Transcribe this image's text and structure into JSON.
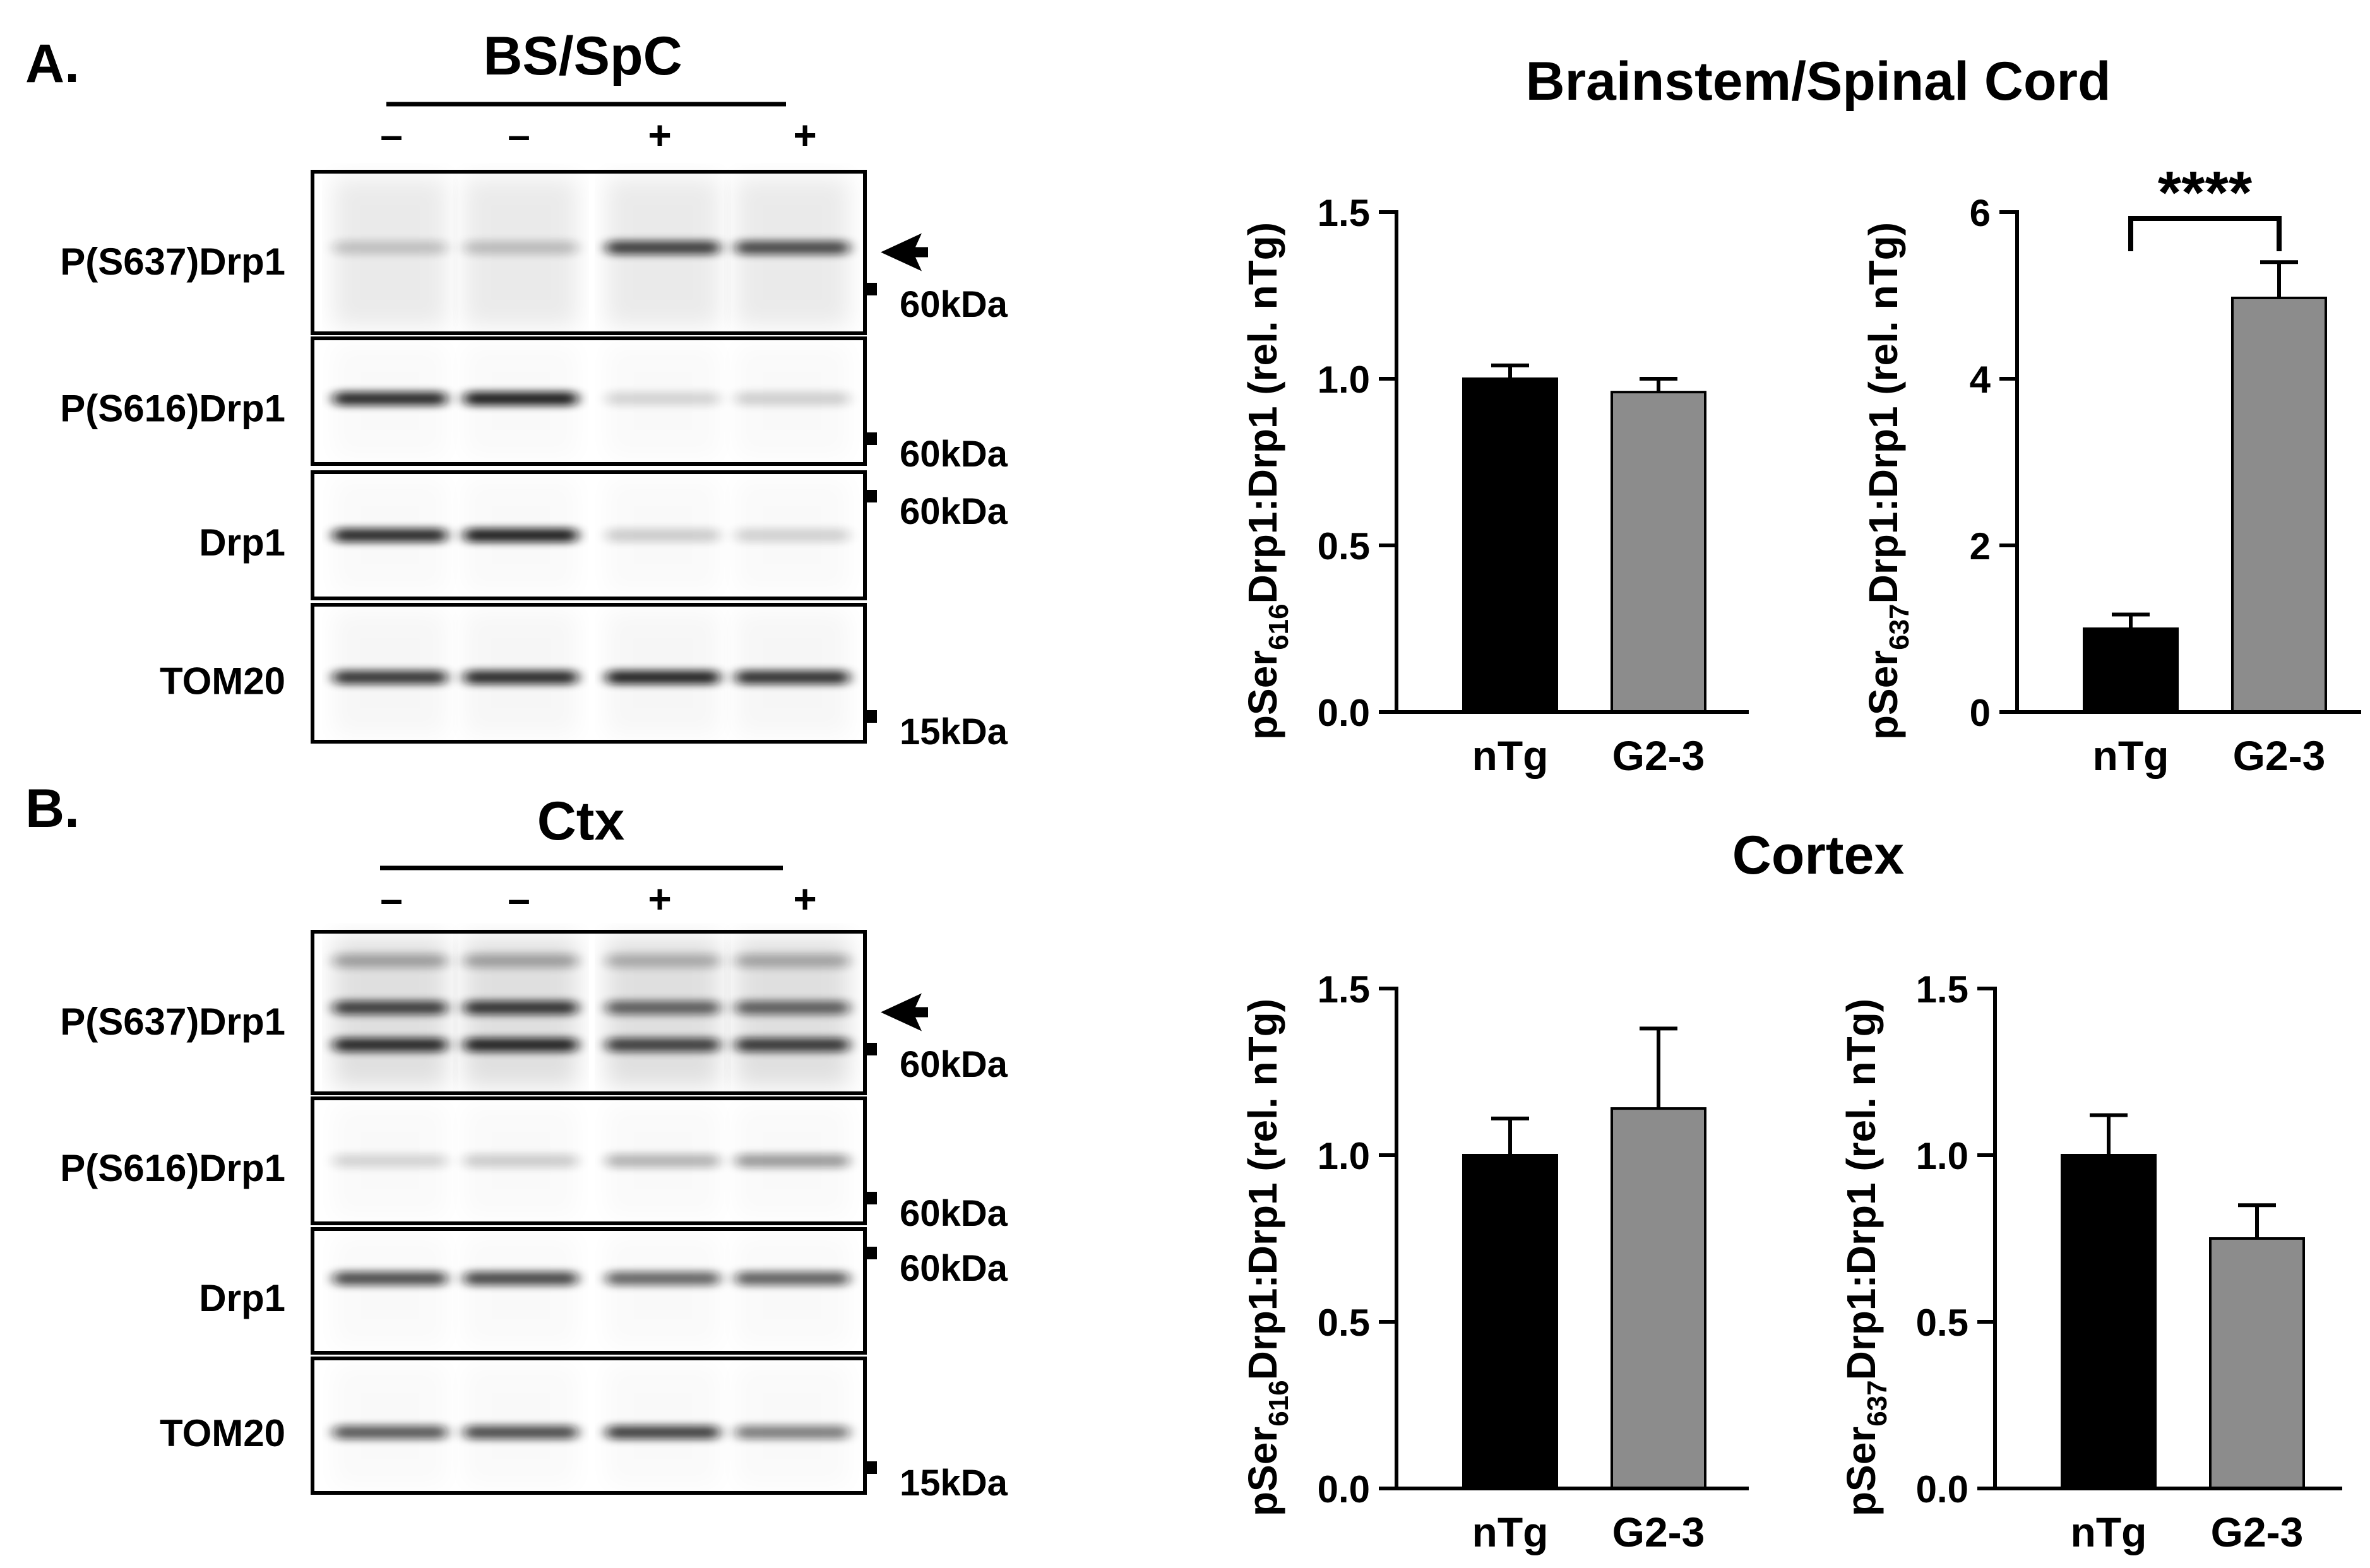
{
  "panel_a": {
    "letter": "A.",
    "region_label": "BS/SpC",
    "lane_signs": [
      "–",
      "–",
      "+",
      "+"
    ],
    "blots": [
      {
        "label": "P(S637)Drp1",
        "marker": "60kDa",
        "arrow": true
      },
      {
        "label": "P(S616)Drp1",
        "marker": "60kDa",
        "arrow": false
      },
      {
        "label": "Drp1",
        "marker": "60kDa",
        "arrow": false
      },
      {
        "label": "TOM20",
        "marker": "15kDa",
        "arrow": false
      }
    ]
  },
  "panel_b": {
    "letter": "B.",
    "region_label": "Ctx",
    "lane_signs": [
      "–",
      "–",
      "+",
      "+"
    ],
    "blots": [
      {
        "label": "P(S637)Drp1",
        "marker": "60kDa",
        "arrow": true
      },
      {
        "label": "P(S616)Drp1",
        "marker": "60kDa",
        "arrow": false
      },
      {
        "label": "Drp1",
        "marker": "60kDa",
        "arrow": false
      },
      {
        "label": "TOM20",
        "marker": "15kDa",
        "arrow": false
      }
    ]
  },
  "section_titles": {
    "top": "Brainstem/Spinal Cord",
    "bottom": "Cortex"
  },
  "chart_data": [
    {
      "type": "bar",
      "region": "Brainstem/Spinal Cord",
      "categories": [
        "nTg",
        "G2-3"
      ],
      "values": [
        1.0,
        0.96
      ],
      "errors": [
        0.04,
        0.04
      ],
      "ylabel": {
        "prefix": "pSer",
        "sub": "616",
        "suffix": "Drp1:Drp1 (rel. nTg)"
      },
      "ylim": [
        0,
        1.5
      ],
      "yticks": [
        "0.0",
        "0.5",
        "1.0",
        "1.5"
      ],
      "colors": [
        "#000000",
        "#8c8c8c"
      ],
      "significance": null
    },
    {
      "type": "bar",
      "region": "Brainstem/Spinal Cord",
      "categories": [
        "nTg",
        "G2-3"
      ],
      "values": [
        1.0,
        4.97
      ],
      "errors": [
        0.17,
        0.43
      ],
      "ylabel": {
        "prefix": "pSer",
        "sub": "637",
        "suffix": "Drp1:Drp1 (rel. nTg)"
      },
      "ylim": [
        0,
        6
      ],
      "yticks": [
        "0",
        "2",
        "4",
        "6"
      ],
      "colors": [
        "#000000",
        "#8c8c8c"
      ],
      "significance": "****"
    },
    {
      "type": "bar",
      "region": "Cortex",
      "categories": [
        "nTg",
        "G2-3"
      ],
      "values": [
        1.0,
        1.14
      ],
      "errors": [
        0.11,
        0.24
      ],
      "ylabel": {
        "prefix": "pSer",
        "sub": "616",
        "suffix": "Drp1:Drp1 (rel. nTg)"
      },
      "ylim": [
        0,
        1.5
      ],
      "yticks": [
        "0.0",
        "0.5",
        "1.0",
        "1.5"
      ],
      "colors": [
        "#000000",
        "#8c8c8c"
      ],
      "significance": null
    },
    {
      "type": "bar",
      "region": "Cortex",
      "categories": [
        "nTg",
        "G2-3"
      ],
      "values": [
        1.0,
        0.75
      ],
      "errors": [
        0.12,
        0.1
      ],
      "ylabel": {
        "prefix": "pSer",
        "sub": "637",
        "suffix": "Drp1:Drp1 (rel. nTg)"
      },
      "ylim": [
        0,
        1.5
      ],
      "yticks": [
        "0.0",
        "0.5",
        "1.0",
        "1.5"
      ],
      "colors": [
        "#000000",
        "#8c8c8c"
      ],
      "significance": null
    }
  ]
}
